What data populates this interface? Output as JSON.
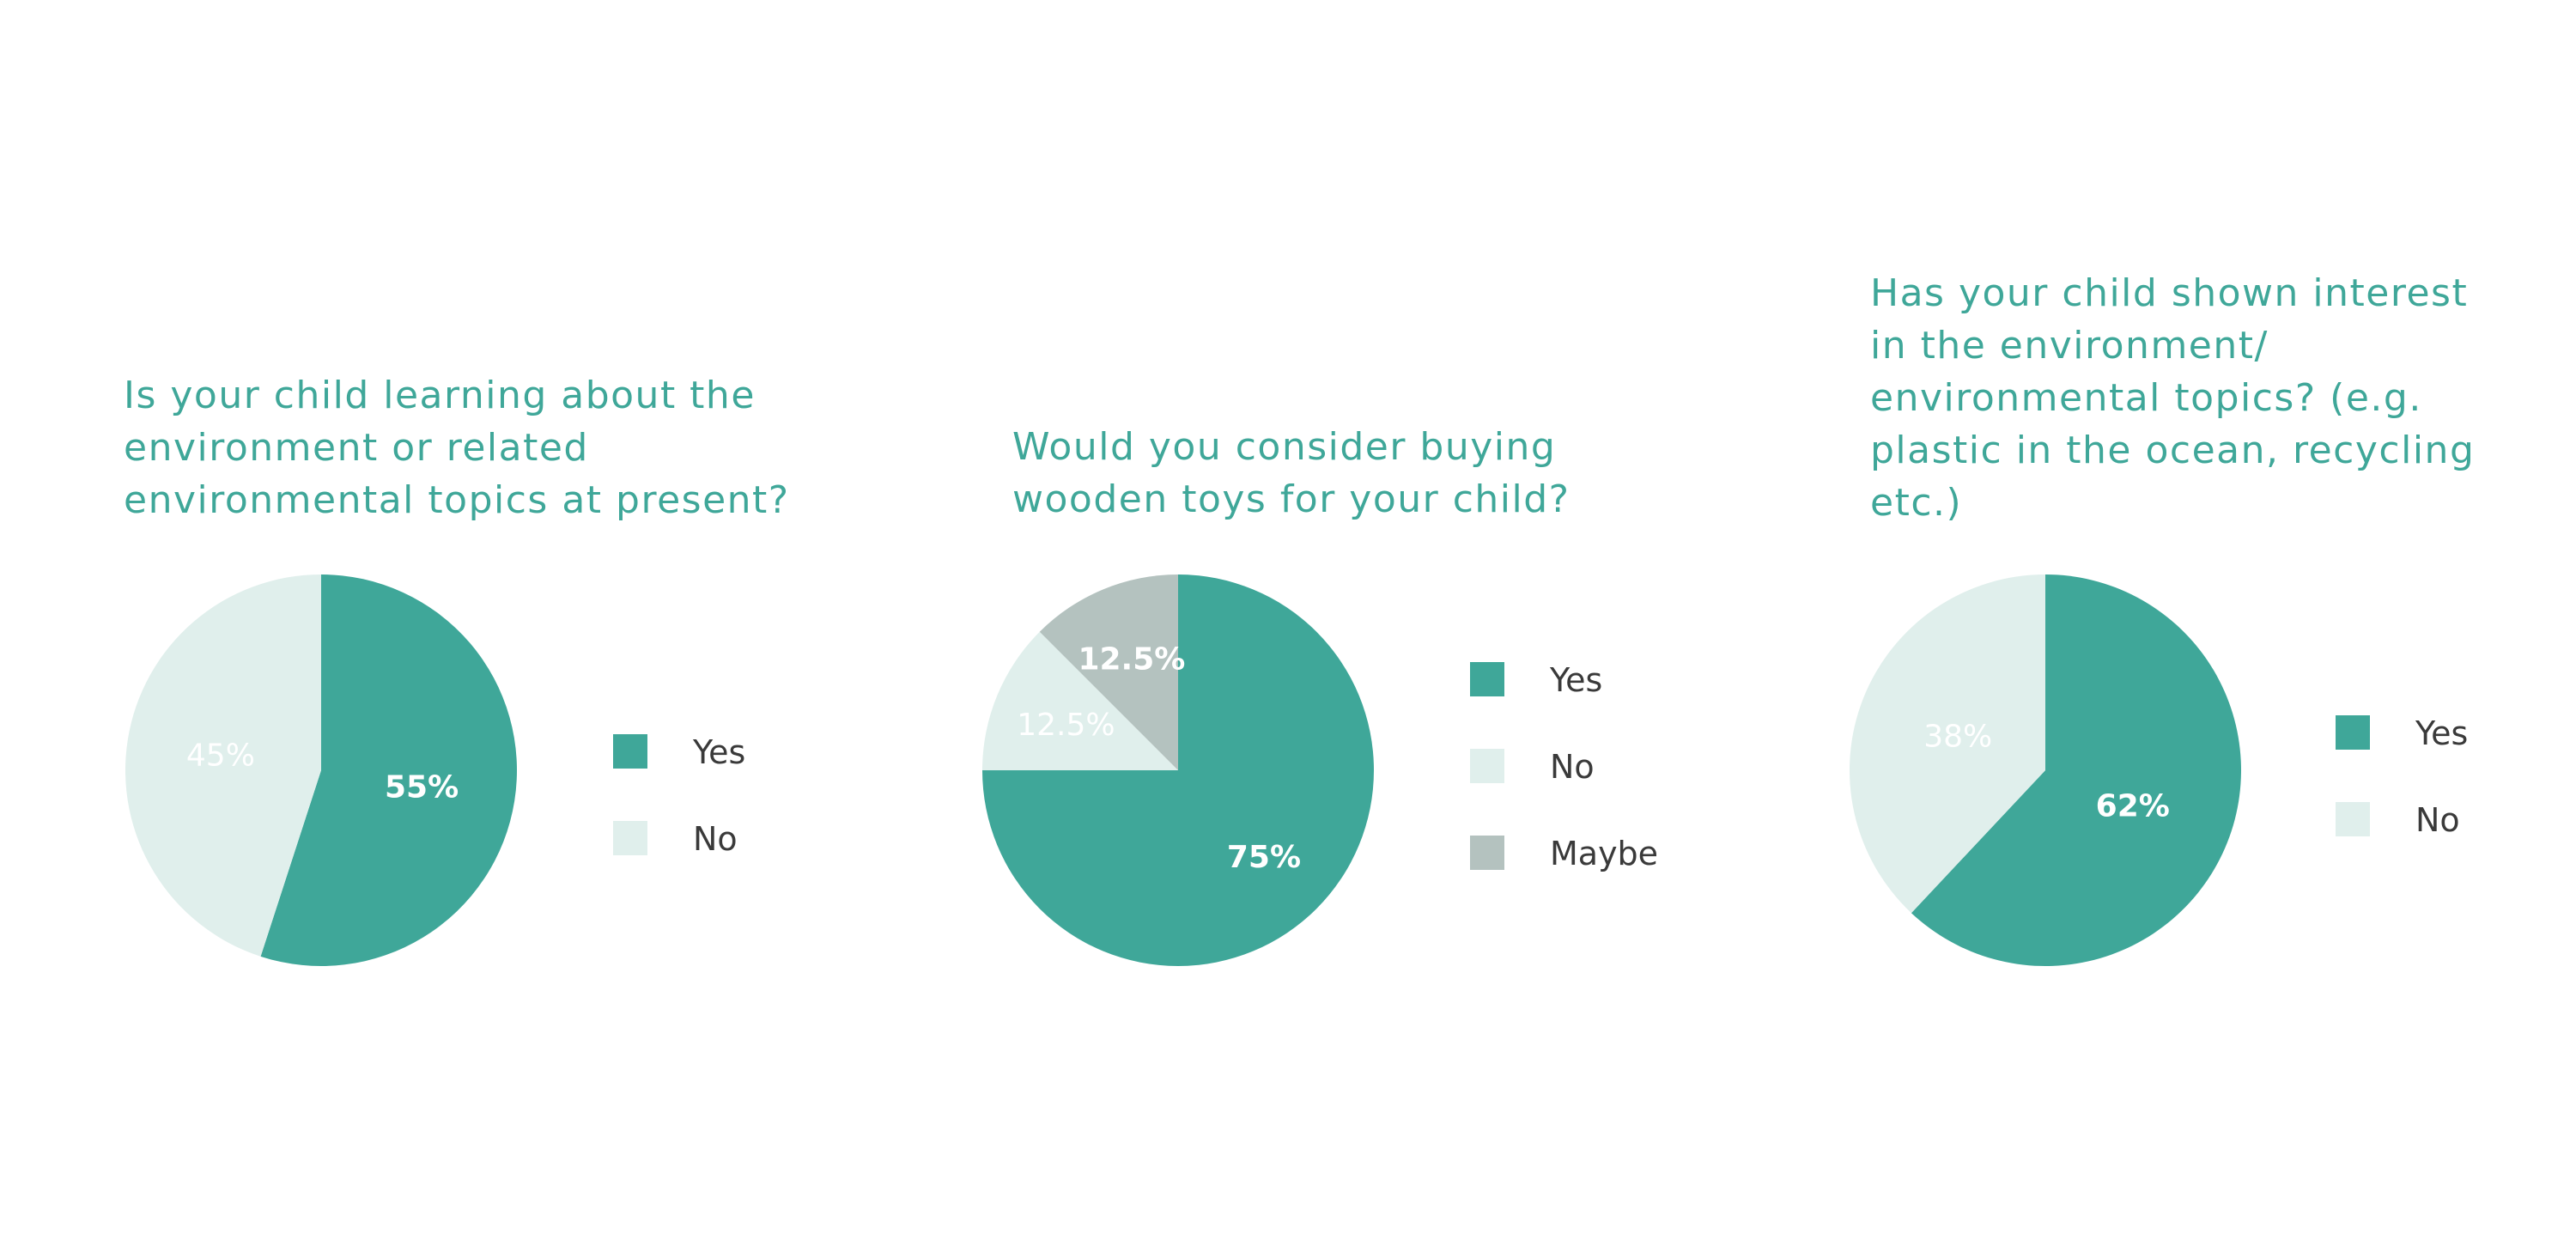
{
  "colors": {
    "yes": "#3fa799",
    "no": "#e0efec",
    "maybe": "#b4c2bf",
    "title": "#3fa799",
    "legend_text": "#3a3a3a",
    "label_on_dark": "#ffffff",
    "label_on_light": "#ffffff"
  },
  "chart_data": [
    {
      "type": "pie",
      "title": "Is your child learning about the environment or related environmental topics at present?",
      "title_lines": [
        "Is your child learning about the",
        "environment or related",
        "environmental topics at present?"
      ],
      "slices": [
        {
          "name": "Yes",
          "value": 55,
          "label": "55%",
          "color_key": "yes"
        },
        {
          "name": "No",
          "value": 45,
          "label": "45%",
          "color_key": "no"
        }
      ],
      "legend": [
        "Yes",
        "No"
      ]
    },
    {
      "type": "pie",
      "title": "Would you consider buying wooden toys for your child?",
      "title_lines": [
        "Would you consider buying",
        "wooden toys for your child?"
      ],
      "slices": [
        {
          "name": "Yes",
          "value": 75,
          "label": "75%",
          "color_key": "yes"
        },
        {
          "name": "No",
          "value": 12.5,
          "label": "12.5%",
          "color_key": "no"
        },
        {
          "name": "Maybe",
          "value": 12.5,
          "label": "12.5%",
          "color_key": "maybe"
        }
      ],
      "legend": [
        "Yes",
        "No",
        "Maybe"
      ]
    },
    {
      "type": "pie",
      "title": "Has your child shown interest in the environment/ environmental topics? (e.g. plastic in the ocean, recycling etc.)",
      "title_lines": [
        "Has your child shown interest",
        "in the environment/",
        "environmental topics? (e.g.",
        "plastic in the ocean, recycling",
        "etc.)"
      ],
      "slices": [
        {
          "name": "Yes",
          "value": 62,
          "label": "62%",
          "color_key": "yes"
        },
        {
          "name": "No",
          "value": 38,
          "label": "38%",
          "color_key": "no"
        }
      ],
      "legend": [
        "Yes",
        "No"
      ]
    }
  ]
}
